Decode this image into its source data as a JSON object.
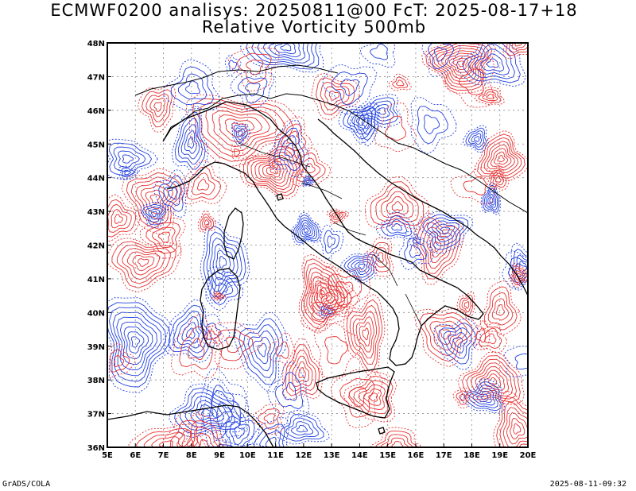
{
  "title_line1": "ECMWF0200 analisys: 20250811@00 FcT: 2025-08-17+18",
  "title_line2": "Relative Vorticity 500mb",
  "footer_left": "GrADS/COLA",
  "footer_right": "2025-08-11-09:32",
  "map": {
    "lon_range": [
      5,
      20
    ],
    "lat_range": [
      36,
      48
    ],
    "lon_ticks": [
      "5E",
      "6E",
      "7E",
      "8E",
      "9E",
      "10E",
      "11E",
      "12E",
      "13E",
      "14E",
      "15E",
      "16E",
      "17E",
      "18E",
      "19E",
      "20E"
    ],
    "lat_ticks": [
      "36N",
      "37N",
      "38N",
      "39N",
      "40N",
      "41N",
      "42N",
      "43N",
      "44N",
      "45N",
      "46N",
      "47N",
      "48N"
    ],
    "colors": {
      "positive": "#e83030",
      "negative": "#2040e0",
      "grid": "#888888",
      "coast": "#000000"
    }
  }
}
